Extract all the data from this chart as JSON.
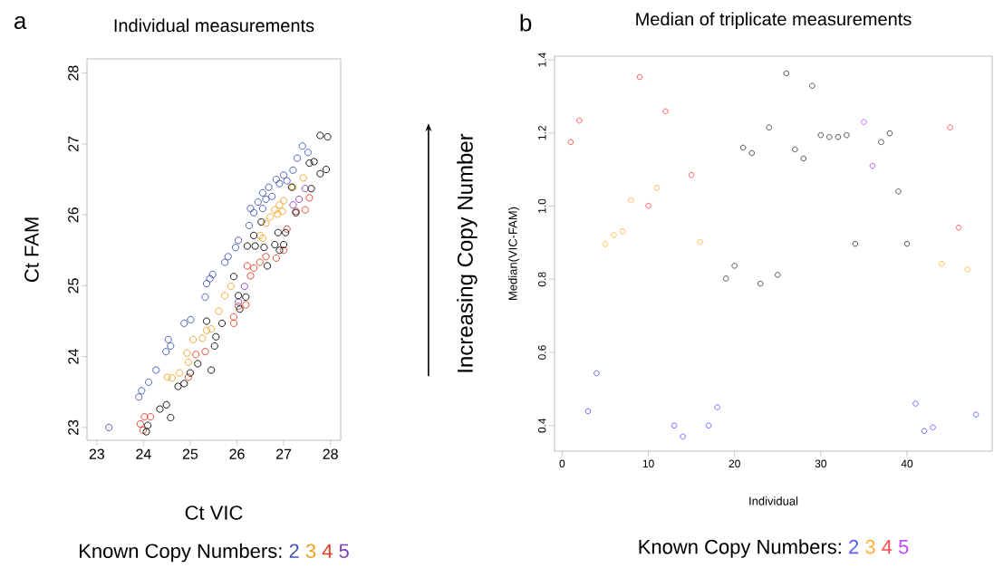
{
  "chart_data": [
    {
      "type": "scatter",
      "title": "Individual measurements",
      "xlabel": "Ct VIC",
      "ylabel": "Ct FAM",
      "legend_title": "Known Copy Numbers:",
      "annotations": [
        "a"
      ],
      "legend": "bottom",
      "marker": "circle",
      "xlim": [
        22.79,
        28.22
      ],
      "ylim": [
        22.82,
        28.2
      ],
      "xticks": [
        23,
        24,
        25,
        26,
        27,
        28
      ],
      "yticks": [
        23,
        24,
        25,
        26,
        27,
        28
      ],
      "series": [
        {
          "name": "2",
          "color": "#3e52b0",
          "x": [
            23.26,
            23.9,
            23.96,
            24.11,
            24.27,
            24.48,
            24.53,
            24.58,
            24.87,
            25.01,
            25.32,
            25.35,
            25.48,
            25.42,
            25.74,
            25.81,
            25.97,
            26.03,
            26.26,
            26.29,
            26.45,
            26.55,
            26.68,
            26.84,
            27.0,
            27.2,
            27.29,
            27.4,
            27.52,
            26.62,
            26.75,
            26.36,
            26.55,
            26.91,
            27.07
          ],
          "values": [
            23.0,
            23.43,
            23.52,
            23.64,
            23.81,
            24.07,
            24.24,
            24.15,
            24.47,
            24.52,
            24.84,
            25.03,
            25.16,
            25.1,
            25.33,
            25.41,
            25.54,
            25.64,
            25.85,
            26.09,
            26.18,
            26.31,
            26.39,
            26.5,
            26.56,
            26.63,
            26.8,
            26.97,
            26.88,
            26.22,
            26.26,
            26.03,
            26.09,
            26.44,
            26.48
          ]
        },
        {
          "name": "3",
          "color": "#f0a020",
          "x": [
            24.51,
            24.61,
            24.77,
            24.93,
            24.96,
            25.06,
            25.26,
            25.35,
            25.45,
            25.61,
            25.74,
            25.87,
            26.49,
            26.62,
            26.71,
            26.81,
            26.91,
            27.0,
            27.2,
            27.42,
            26.87,
            26.97,
            26.55
          ],
          "values": [
            23.71,
            23.7,
            23.77,
            24.05,
            23.92,
            24.24,
            24.26,
            24.37,
            24.39,
            24.64,
            24.86,
            24.99,
            25.71,
            25.88,
            25.97,
            26.07,
            26.14,
            26.2,
            26.39,
            26.52,
            26.01,
            26.05,
            25.67
          ]
        },
        {
          "name": "4",
          "color": "#e03a20",
          "x": [
            23.93,
            24.02,
            24.15,
            23.99,
            24.96,
            25.12,
            25.32,
            25.93,
            25.93,
            26.03,
            26.19,
            26.22,
            26.36,
            26.49,
            26.62,
            26.84,
            27.0,
            27.07,
            27.26,
            27.46,
            27.55,
            26.29
          ],
          "values": [
            23.05,
            23.15,
            23.15,
            22.96,
            23.71,
            24.03,
            24.07,
            24.47,
            24.56,
            24.71,
            24.73,
            25.28,
            25.25,
            25.33,
            25.41,
            25.39,
            25.5,
            25.8,
            26.05,
            26.07,
            26.24,
            25.14
          ]
        },
        {
          "name": "5",
          "color": "#8040b0",
          "x": [
            26.03,
            26.16,
            27.2,
            27.33,
            27.46
          ],
          "values": [
            24.77,
            24.99,
            26.14,
            26.22,
            26.37
          ]
        },
        {
          "color": "#000000",
          "x": [
            24.06,
            24.09,
            24.35,
            24.49,
            24.58,
            24.74,
            24.87,
            25.0,
            25.16,
            25.45,
            25.52,
            25.55,
            25.35,
            25.68,
            25.93,
            26.03,
            26.06,
            26.19,
            26.22,
            26.39,
            26.52,
            26.58,
            26.65,
            26.81,
            26.91,
            27.0,
            27.04,
            26.88,
            27.17,
            27.26,
            27.59,
            27.55,
            27.65,
            27.78,
            27.91,
            27.78,
            27.94,
            26.36
          ],
          "values": [
            22.94,
            23.03,
            23.26,
            23.32,
            23.14,
            23.58,
            23.62,
            23.77,
            23.9,
            23.81,
            24.15,
            24.28,
            24.5,
            24.47,
            25.13,
            24.86,
            24.67,
            24.84,
            25.56,
            25.56,
            25.9,
            25.54,
            25.28,
            25.58,
            25.5,
            25.58,
            25.75,
            25.75,
            26.39,
            26.03,
            26.37,
            26.73,
            26.75,
            26.58,
            26.64,
            27.12,
            27.1,
            25.71
          ]
        }
      ]
    },
    {
      "type": "scatter",
      "title": "Median of triplicate measurements",
      "xlabel": "Individual",
      "ylabel": "Median(VIC-FAM)",
      "legend_title": "Known Copy Numbers:",
      "annotations": [
        "b",
        "Increasing Copy Number"
      ],
      "legend": "bottom",
      "marker": "circle",
      "xlim": [
        -0.88,
        49.88
      ],
      "ylim": [
        0.33,
        1.41
      ],
      "xticks": [
        0,
        10,
        20,
        30,
        40
      ],
      "yticks": [
        0.4,
        0.6,
        0.8,
        {
          "value": 1,
          "label": "1.0"
        },
        1.2,
        1.4
      ],
      "series": [
        {
          "name": "2",
          "color": "#5a5aff",
          "x": [
            3,
            4,
            13,
            14,
            17,
            18,
            41,
            42,
            43,
            48
          ],
          "values": [
            0.439,
            0.543,
            0.4,
            0.37,
            0.4,
            0.45,
            0.46,
            0.385,
            0.395,
            0.43
          ]
        },
        {
          "name": "3",
          "color": "#ffb03a",
          "x": [
            5,
            6,
            7,
            8,
            11,
            16,
            44,
            47
          ],
          "values": [
            0.896,
            0.921,
            0.931,
            1.016,
            1.05,
            0.902,
            0.842,
            0.827
          ]
        },
        {
          "name": "4",
          "color": "#ff4d4d",
          "x": [
            1,
            2,
            9,
            10,
            12,
            15,
            45,
            46
          ],
          "values": [
            1.175,
            1.234,
            1.353,
            1.001,
            1.259,
            1.085,
            1.215,
            0.941
          ]
        },
        {
          "name": "5",
          "color": "#c050ff",
          "x": [
            35,
            36
          ],
          "values": [
            1.23,
            1.11
          ]
        },
        {
          "color": "#404040",
          "x": [
            19,
            20,
            21,
            22,
            23,
            24,
            25,
            26,
            27,
            28,
            29,
            30,
            31,
            32,
            33,
            34,
            37,
            38,
            39,
            40
          ],
          "values": [
            0.802,
            0.837,
            1.16,
            1.145,
            0.788,
            1.215,
            0.812,
            1.363,
            1.155,
            1.13,
            1.329,
            1.194,
            1.189,
            1.189,
            1.194,
            0.897,
            1.175,
            1.199,
            1.04,
            0.897
          ]
        }
      ]
    }
  ]
}
